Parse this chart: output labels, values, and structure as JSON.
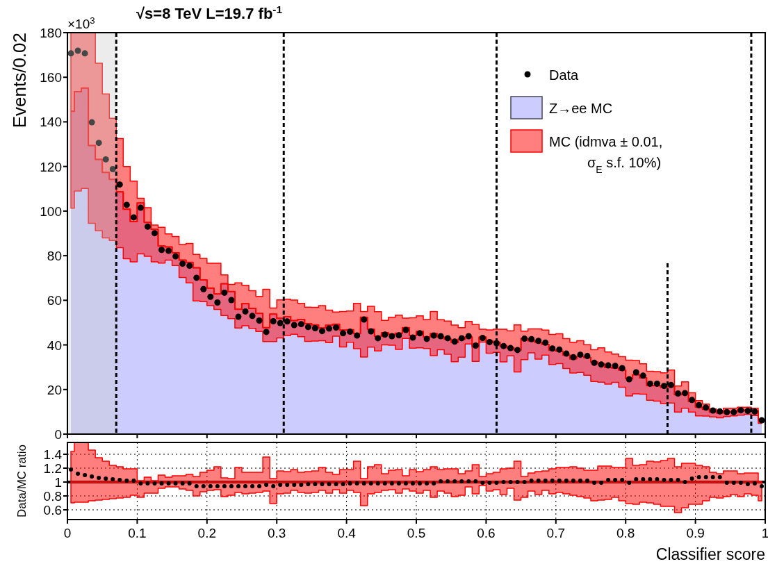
{
  "chart_data": [
    {
      "type": "step",
      "title": "√s=8 TeV L=19.7 fb$^{-1}$",
      "ylabel": "Events/0.02",
      "annotations": [
        "×10$^{3}$"
      ],
      "xlim": [
        0,
        1
      ],
      "xticks": [
        0,
        0.1,
        0.2,
        0.3,
        0.4,
        0.5,
        0.6,
        0.7,
        0.8,
        0.9,
        1
      ],
      "ylim": [
        0,
        180
      ],
      "yticks": [
        0,
        20,
        40,
        60,
        80,
        100,
        120,
        140,
        160,
        180
      ],
      "tick_labels": "y",
      "legend": "top right",
      "x": [
        0.005,
        0.015,
        0.025,
        0.035,
        0.045,
        0.055,
        0.065,
        0.075,
        0.085,
        0.095,
        0.105,
        0.115,
        0.125,
        0.135,
        0.145,
        0.155,
        0.165,
        0.175,
        0.185,
        0.195,
        0.205,
        0.215,
        0.225,
        0.235,
        0.245,
        0.255,
        0.265,
        0.275,
        0.285,
        0.295,
        0.305,
        0.315,
        0.325,
        0.335,
        0.345,
        0.355,
        0.365,
        0.375,
        0.385,
        0.395,
        0.405,
        0.415,
        0.425,
        0.435,
        0.445,
        0.455,
        0.465,
        0.475,
        0.485,
        0.495,
        0.505,
        0.515,
        0.525,
        0.535,
        0.545,
        0.555,
        0.565,
        0.575,
        0.585,
        0.595,
        0.605,
        0.615,
        0.625,
        0.635,
        0.645,
        0.655,
        0.665,
        0.675,
        0.685,
        0.695,
        0.705,
        0.715,
        0.725,
        0.735,
        0.745,
        0.755,
        0.765,
        0.775,
        0.785,
        0.795,
        0.805,
        0.815,
        0.825,
        0.835,
        0.845,
        0.855,
        0.865,
        0.875,
        0.885,
        0.895,
        0.905,
        0.915,
        0.925,
        0.935,
        0.945,
        0.955,
        0.965,
        0.975,
        0.985,
        0.995
      ],
      "series": [
        {
          "name": "Z→ee MC",
          "type": "area",
          "color": "#ccccff",
          "values": [
            144.7,
            153.5,
            155.2,
            129.4,
            123.2,
            117.3,
            114.2,
            108.6,
            100.8,
            95.3,
            103.6,
            94.9,
            91.9,
            84.3,
            83.9,
            81.3,
            78,
            77,
            74.6,
            69.1,
            65.5,
            62.8,
            67.4,
            63.9,
            56,
            58.5,
            56.4,
            54.1,
            47.7,
            53.8,
            51.9,
            52.6,
            50.9,
            51.4,
            49.5,
            49,
            47.6,
            48.8,
            49.3,
            46.6,
            46.8,
            45.1,
            52.4,
            47,
            43.9,
            45.5,
            44.8,
            45.2,
            47.7,
            44.2,
            46.1,
            43.6,
            45.1,
            43.5,
            42.6,
            41.1,
            42.6,
            43.5,
            39.3,
            43.5,
            41.7,
            41.2,
            39.5,
            38.6,
            37.7,
            42.8,
            41.8,
            41,
            40.2,
            37.6,
            37.2,
            35.4,
            33.8,
            34.9,
            34.3,
            32.3,
            31.5,
            29.9,
            29.7,
            28.7,
            24.8,
            26.6,
            25.2,
            21.7,
            21.7,
            21,
            21.4,
            17.7,
            18.4,
            14.6,
            12.1,
            11.1,
            9.9,
            9.5,
            10,
            10,
            10.8,
            10.7,
            10.3,
            6.6
          ]
        },
        {
          "name": "MC (idmva ± 0.01, σ$_{E}$ s.f. 10%)",
          "color": "#ff0000",
          "values": [
            144.7,
            153.5,
            155.2,
            129.4,
            123.2,
            117.3,
            114.2,
            108.6,
            100.8,
            95.3,
            103.6,
            94.9,
            91.9,
            84.3,
            83.9,
            81.3,
            78,
            77,
            74.6,
            69.1,
            65.5,
            62.8,
            67.4,
            63.9,
            56,
            58.5,
            56.4,
            54.1,
            47.7,
            53.8,
            51.9,
            52.6,
            50.9,
            51.4,
            49.5,
            49,
            47.6,
            48.8,
            49.3,
            46.6,
            46.8,
            45.1,
            52.4,
            47,
            43.9,
            45.5,
            44.8,
            45.2,
            47.7,
            44.2,
            46.1,
            43.6,
            45.1,
            43.5,
            42.6,
            41.1,
            42.6,
            43.5,
            39.3,
            43.5,
            41.7,
            41.2,
            39.5,
            38.6,
            37.7,
            42.8,
            41.8,
            41,
            40.2,
            37.6,
            37.2,
            35.4,
            33.8,
            34.9,
            34.3,
            32.3,
            31.5,
            29.9,
            29.7,
            28.7,
            24.8,
            26.6,
            25.2,
            21.7,
            21.7,
            21,
            21.4,
            17.7,
            18.4,
            14.6,
            12.1,
            11.1,
            9.9,
            9.5,
            10,
            10,
            10.8,
            10.7,
            10.3,
            6.6
          ],
          "lower": [
            101.3,
            109,
            110.2,
            94.5,
            91.2,
            88,
            86.8,
            83.6,
            78.6,
            77.2,
            80.8,
            79.7,
            77.2,
            76.7,
            78,
            75.6,
            70.2,
            67.8,
            59.7,
            59.4,
            57.6,
            55.9,
            53.2,
            51.8,
            47.6,
            48.6,
            47.4,
            46,
            41.5,
            41.5,
            43.1,
            44.2,
            44.8,
            43.7,
            41.6,
            41.7,
            41.9,
            41,
            43.9,
            39.1,
            41.2,
            38.3,
            34.6,
            39,
            37.3,
            40,
            39.9,
            38,
            42.9,
            38.5,
            38.7,
            38.4,
            35.2,
            37.8,
            35.8,
            32.5,
            34.5,
            40.4,
            32.6,
            41.3,
            36.3,
            36.7,
            32.4,
            35.1,
            27.9,
            33.4,
            36.4,
            33.6,
            35.4,
            31.2,
            31.6,
            29.4,
            27.4,
            27.6,
            26.4,
            23.6,
            23.3,
            22.4,
            23.2,
            21,
            17.1,
            18.1,
            17.9,
            15.2,
            14.8,
            13.7,
            13.9,
            9.9,
            11.6,
            9.9,
            8.2,
            8.1,
            7.7,
            7.3,
            7.9,
            8.2,
            8.5,
            8.9,
            8.3,
            4.8
          ],
          "upper": [
            180,
            180,
            180,
            180,
            166.3,
            152.5,
            141.6,
            132.5,
            120,
            113.4,
            105.7,
            101.5,
            93.7,
            92.7,
            89.8,
            88.6,
            85,
            85.5,
            80.6,
            78.8,
            76.6,
            76.6,
            71.4,
            67.1,
            67.8,
            66.7,
            64.3,
            61.7,
            64.9,
            56.5,
            60.2,
            60.5,
            60.1,
            58.6,
            56.9,
            56.8,
            57.6,
            55.6,
            54.7,
            55,
            55.2,
            58.6,
            55,
            57.3,
            54.9,
            51,
            52.4,
            53.3,
            52,
            52.2,
            53,
            51.4,
            55,
            51.3,
            50.7,
            48.9,
            47.7,
            50.5,
            49.1,
            47,
            46.7,
            47,
            47,
            46.3,
            49,
            46.2,
            47.2,
            47.2,
            46.6,
            44.7,
            45,
            42.8,
            41.2,
            41.9,
            40.1,
            37.8,
            38.7,
            36.8,
            35.9,
            34.7,
            33.2,
            33,
            31.5,
            28.2,
            28,
            27.5,
            28.7,
            21.6,
            23.4,
            18.5,
            15,
            13.5,
            11.3,
            10.6,
            11.6,
            11.6,
            12.1,
            12.1,
            11.6,
            6.7
          ]
        },
        {
          "name": "Data",
          "type": "scatter",
          "color": "#000000",
          "marker": "circle",
          "values": [
            170.7,
            171.9,
            170.7,
            139.8,
            130.6,
            123.2,
            118.8,
            111.9,
            102.8,
            97.2,
            101.5,
            93,
            90.1,
            82.6,
            82.2,
            79.7,
            76.4,
            75.5,
            70.1,
            65,
            61.6,
            59,
            63.4,
            60.1,
            52.6,
            55,
            53,
            50.9,
            45.8,
            50.6,
            49.8,
            50.5,
            48.9,
            49.3,
            48,
            47.5,
            46.2,
            47.3,
            47.8,
            45.2,
            45.9,
            44.2,
            51.4,
            46.1,
            43,
            44.6,
            43.9,
            44.3,
            46.7,
            43.3,
            45.2,
            42.7,
            44.2,
            43.9,
            43,
            41.5,
            43,
            43.9,
            39.7,
            43.1,
            41.3,
            40.8,
            39.5,
            38.6,
            37.7,
            42.8,
            42.6,
            41.8,
            41,
            38.4,
            37.9,
            36.1,
            34.5,
            35.6,
            35,
            32,
            31.2,
            30.8,
            30.6,
            29.6,
            24.6,
            27.7,
            26.2,
            22.6,
            22.6,
            21.6,
            22,
            18.2,
            18.4,
            15.3,
            13,
            11.9,
            10.6,
            10.2,
            9.9,
            9.9,
            10.7,
            10.4,
            10.1,
            6.2
          ]
        }
      ],
      "bands": [
        {
          "axis": "x",
          "from": 0,
          "to": 0.07,
          "color": "#c8c8c8"
        }
      ],
      "ref_lines": [
        {
          "axis": "x",
          "value": 0.07,
          "line_style": "dashed",
          "color": "#000000"
        },
        {
          "axis": "x",
          "value": 0.31,
          "line_style": "dashed",
          "color": "#000000"
        },
        {
          "axis": "x",
          "value": 0.615,
          "line_style": "dashed",
          "color": "#000000"
        },
        {
          "axis": "x",
          "value": 0.86,
          "line_style": "dashed",
          "color": "#000000"
        },
        {
          "axis": "x",
          "value": 0.98,
          "line_style": "dashed",
          "color": "#000000"
        }
      ]
    },
    {
      "type": "scatter",
      "xlabel": "Classifier score",
      "ylabel": "Data/MC ratio",
      "xlim": [
        0,
        1
      ],
      "xticks": [
        0,
        0.1,
        0.2,
        0.3,
        0.4,
        0.5,
        0.6,
        0.7,
        0.8,
        0.9,
        1
      ],
      "ylim": [
        0.46,
        1.57
      ],
      "yticks": [
        0.6,
        0.8,
        1,
        1.2,
        1.4
      ],
      "grid": true,
      "x": [
        0.005,
        0.015,
        0.025,
        0.035,
        0.045,
        0.055,
        0.065,
        0.075,
        0.085,
        0.095,
        0.105,
        0.115,
        0.125,
        0.135,
        0.145,
        0.155,
        0.165,
        0.175,
        0.185,
        0.195,
        0.205,
        0.215,
        0.225,
        0.235,
        0.245,
        0.255,
        0.265,
        0.275,
        0.285,
        0.295,
        0.305,
        0.315,
        0.325,
        0.335,
        0.345,
        0.355,
        0.365,
        0.375,
        0.385,
        0.395,
        0.405,
        0.415,
        0.425,
        0.435,
        0.445,
        0.455,
        0.465,
        0.475,
        0.485,
        0.495,
        0.505,
        0.515,
        0.525,
        0.535,
        0.545,
        0.555,
        0.565,
        0.575,
        0.585,
        0.595,
        0.605,
        0.615,
        0.625,
        0.635,
        0.645,
        0.655,
        0.665,
        0.675,
        0.685,
        0.695,
        0.705,
        0.715,
        0.725,
        0.735,
        0.745,
        0.755,
        0.765,
        0.775,
        0.785,
        0.795,
        0.805,
        0.815,
        0.825,
        0.835,
        0.845,
        0.855,
        0.865,
        0.875,
        0.885,
        0.895,
        0.905,
        0.915,
        0.925,
        0.935,
        0.945,
        0.955,
        0.965,
        0.975,
        0.985,
        0.995
      ],
      "series": [
        {
          "type": "step",
          "color": "#ff0000",
          "values": [
            1,
            1,
            1,
            1,
            1,
            1,
            1,
            1,
            1,
            1,
            1,
            1,
            1,
            1,
            1,
            1,
            1,
            1,
            1,
            1,
            1,
            1,
            1,
            1,
            1,
            1,
            1,
            1,
            1,
            1,
            1,
            1,
            1,
            1,
            1,
            1,
            1,
            1,
            1,
            1,
            1,
            1,
            1,
            1,
            1,
            1,
            1,
            1,
            1,
            1,
            1,
            1,
            1,
            1,
            1,
            1,
            1,
            1,
            1,
            1,
            1,
            1,
            1,
            1,
            1,
            1,
            1,
            1,
            1,
            1,
            1,
            1,
            1,
            1,
            1,
            1,
            1,
            1,
            1,
            1,
            1,
            1,
            1,
            1,
            1,
            1,
            1,
            1,
            1,
            1,
            1,
            1,
            1,
            1,
            1,
            1,
            1,
            1,
            1,
            1
          ],
          "lower": [
            0.7,
            0.71,
            0.71,
            0.73,
            0.74,
            0.75,
            0.76,
            0.77,
            0.78,
            0.81,
            0.78,
            0.84,
            0.84,
            0.91,
            0.93,
            0.93,
            0.9,
            0.88,
            0.8,
            0.86,
            0.88,
            0.89,
            0.79,
            0.81,
            0.85,
            0.83,
            0.84,
            0.85,
            0.87,
            0.69,
            0.83,
            0.84,
            0.88,
            0.85,
            0.84,
            0.85,
            0.88,
            0.84,
            0.89,
            0.84,
            0.88,
            0.85,
            0.66,
            0.83,
            0.85,
            0.88,
            0.89,
            0.84,
            0.9,
            0.87,
            0.84,
            0.88,
            0.78,
            0.87,
            0.84,
            0.79,
            0.81,
            0.93,
            0.83,
            0.95,
            0.87,
            0.89,
            0.82,
            0.91,
            0.74,
            0.78,
            0.87,
            0.82,
            0.88,
            0.83,
            0.85,
            0.83,
            0.81,
            0.79,
            0.77,
            0.73,
            0.74,
            0.75,
            0.78,
            0.73,
            0.69,
            0.68,
            0.71,
            0.7,
            0.68,
            0.65,
            0.65,
            0.56,
            0.63,
            0.68,
            0.68,
            0.73,
            0.78,
            0.77,
            0.79,
            0.82,
            0.79,
            0.83,
            0.81,
            0.73
          ],
          "upper": [
            1.44,
            1.57,
            1.57,
            1.46,
            1.35,
            1.3,
            1.24,
            1.22,
            1.19,
            1.19,
            1.02,
            1.07,
            1.02,
            1.1,
            1.07,
            1.09,
            1.09,
            1.11,
            1.08,
            1.14,
            1.17,
            1.22,
            1.06,
            1.05,
            1.21,
            1.14,
            1.14,
            1.14,
            1.36,
            1.05,
            1.16,
            1.15,
            1.18,
            1.14,
            1.15,
            1.16,
            1.21,
            1.14,
            1.11,
            1.18,
            1.18,
            1.3,
            1.05,
            1.22,
            1.25,
            1.12,
            1.17,
            1.18,
            1.09,
            1.18,
            1.15,
            1.18,
            1.22,
            1.18,
            1.19,
            1.19,
            1.12,
            1.16,
            1.25,
            1.08,
            1.12,
            1.14,
            1.19,
            1.2,
            1.3,
            1.08,
            1.13,
            1.15,
            1.16,
            1.19,
            1.21,
            1.21,
            1.22,
            1.2,
            1.17,
            1.17,
            1.23,
            1.23,
            1.21,
            1.21,
            1.34,
            1.24,
            1.25,
            1.3,
            1.29,
            1.31,
            1.34,
            1.22,
            1.27,
            1.27,
            1.24,
            1.22,
            1.14,
            1.12,
            1.16,
            1.16,
            1.12,
            1.13,
            1.13,
            1.01
          ]
        },
        {
          "color": "#000000",
          "marker": "circle",
          "values": [
            1.18,
            1.12,
            1.1,
            1.08,
            1.06,
            1.05,
            1.04,
            1.03,
            1.02,
            1.02,
            0.98,
            0.98,
            0.98,
            0.98,
            0.98,
            0.98,
            0.98,
            0.98,
            0.94,
            0.94,
            0.94,
            0.94,
            0.94,
            0.94,
            0.94,
            0.94,
            0.94,
            0.94,
            0.96,
            0.94,
            0.96,
            0.96,
            0.96,
            0.96,
            0.97,
            0.97,
            0.97,
            0.97,
            0.97,
            0.97,
            0.98,
            0.98,
            0.98,
            0.98,
            0.98,
            0.98,
            0.98,
            0.98,
            0.98,
            0.98,
            0.98,
            0.98,
            0.98,
            1.01,
            1.01,
            1.01,
            1.01,
            1.01,
            1.01,
            0.99,
            0.99,
            0.99,
            1,
            1,
            1,
            1,
            1.02,
            1.02,
            1.02,
            1.02,
            1.02,
            1.02,
            1.02,
            1.02,
            1.02,
            0.99,
            0.99,
            1.03,
            1.03,
            1.03,
            0.99,
            1.04,
            1.04,
            1.04,
            1.04,
            1.03,
            1.03,
            1.03,
            1,
            1.05,
            1.07,
            1.07,
            1.07,
            1.07,
            0.99,
            0.99,
            0.99,
            0.97,
            0.98,
            0.94
          ]
        }
      ],
      "ref_lines": [
        {
          "axis": "y",
          "value": 1,
          "color": "#000000",
          "line_style": "solid"
        }
      ]
    }
  ]
}
